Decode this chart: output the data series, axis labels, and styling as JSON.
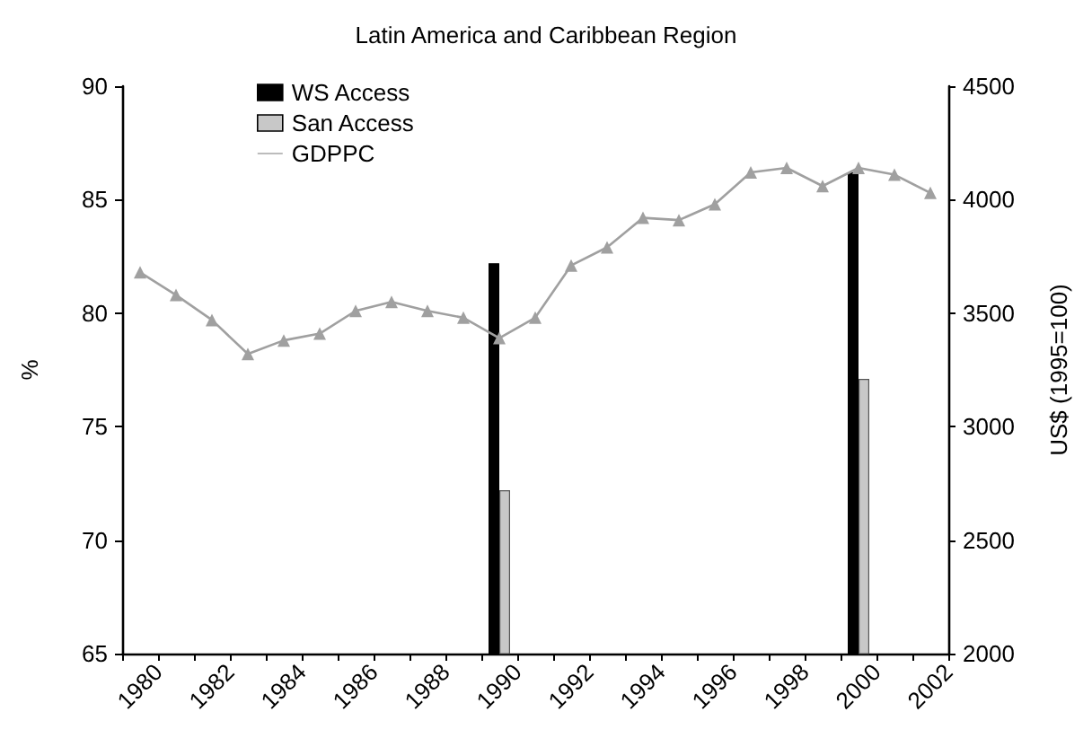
{
  "chart_data": {
    "type": "bar",
    "title": "Latin America and Caribbean Region",
    "ylabel": "%",
    "y2label": "US$ (1995=100)",
    "xlim": [
      1979,
      2002
    ],
    "xticks": [
      {
        "value": 1979,
        "label": null
      },
      {
        "value": 1980,
        "label": "1980"
      },
      {
        "value": 1981,
        "label": null
      },
      {
        "value": 1982,
        "label": "1982"
      },
      {
        "value": 1983,
        "label": null
      },
      {
        "value": 1984,
        "label": "1984"
      },
      {
        "value": 1985,
        "label": null
      },
      {
        "value": 1986,
        "label": "1986"
      },
      {
        "value": 1987,
        "label": null
      },
      {
        "value": 1988,
        "label": "1988"
      },
      {
        "value": 1989,
        "label": null
      },
      {
        "value": 1990,
        "label": "1990"
      },
      {
        "value": 1991,
        "label": null
      },
      {
        "value": 1992,
        "label": "1992"
      },
      {
        "value": 1993,
        "label": null
      },
      {
        "value": 1994,
        "label": "1994"
      },
      {
        "value": 1995,
        "label": null
      },
      {
        "value": 1996,
        "label": "1996"
      },
      {
        "value": 1997,
        "label": null
      },
      {
        "value": 1998,
        "label": "1998"
      },
      {
        "value": 1999,
        "label": null
      },
      {
        "value": 2000,
        "label": "2000"
      },
      {
        "value": 2001,
        "label": null
      },
      {
        "value": 2002,
        "label": "2002"
      }
    ],
    "ylim": [
      65,
      90
    ],
    "yticks": [
      65,
      70,
      75,
      80,
      85,
      90
    ],
    "y2lim": [
      2000,
      4500
    ],
    "y2ticks": [
      2000,
      2500,
      3000,
      3500,
      4000,
      4500
    ],
    "grid": false,
    "legend": "top left",
    "series": [
      {
        "name": "WS Access",
        "color": "#000000",
        "x": [
          1989.5,
          1999.5
        ],
        "values": [
          82.2,
          86.2
        ]
      },
      {
        "name": "San Access",
        "color": "#c8c8c8",
        "x": [
          1989.5,
          1999.5
        ],
        "values": [
          72.2,
          77.1
        ]
      },
      {
        "name": "GDPPC",
        "type": "line",
        "axis": "y2",
        "color": "#a0a0a0",
        "marker": "triangle",
        "x": [
          1979.5,
          1980.5,
          1981.5,
          1982.5,
          1983.5,
          1984.5,
          1985.5,
          1986.5,
          1987.5,
          1988.5,
          1989.5,
          1990.5,
          1991.5,
          1992.5,
          1993.5,
          1994.5,
          1995.5,
          1996.5,
          1997.5,
          1998.5,
          1999.5,
          2000.5,
          2001.5
        ],
        "values": [
          3680,
          3580,
          3470,
          3320,
          3380,
          3410,
          3510,
          3550,
          3510,
          3480,
          3390,
          3480,
          3710,
          3790,
          3920,
          3910,
          3980,
          4120,
          4140,
          4060,
          4140,
          4110,
          4030
        ]
      }
    ]
  }
}
